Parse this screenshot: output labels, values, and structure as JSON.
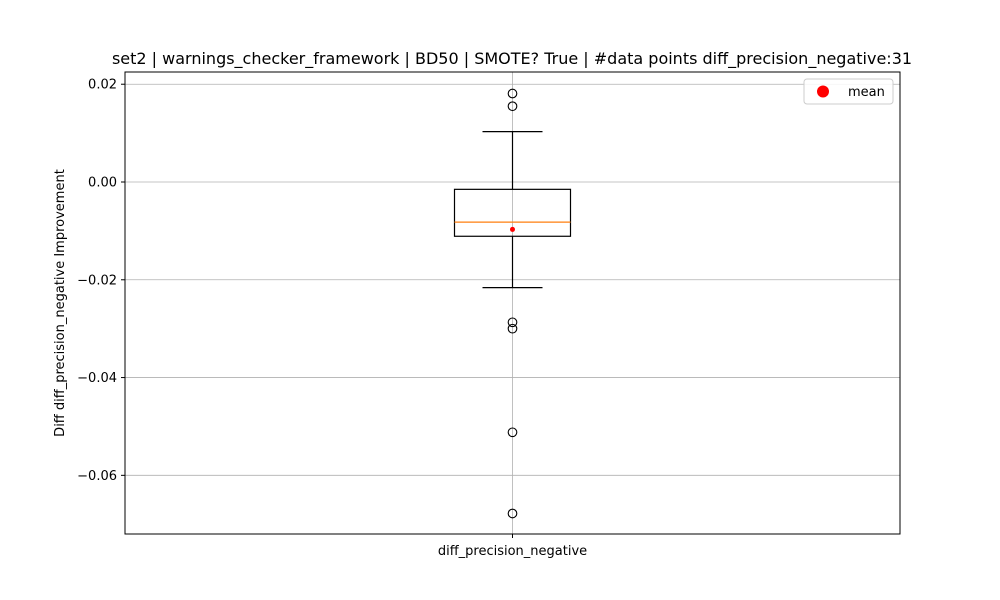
{
  "chart_data": {
    "type": "box",
    "title": "set2 | warnings_checker_framework | BD50 | SMOTE? True | #data points diff_precision_negative:31",
    "xlabel": "",
    "ylabel": "Diff diff_precision_negative Improvement",
    "categories": [
      "diff_precision_negative"
    ],
    "ylim": [
      -0.072,
      0.0225
    ],
    "yticks": [
      0.02,
      0.0,
      -0.02,
      -0.04,
      -0.06
    ],
    "ytick_labels": [
      "0.02",
      "0.00",
      "−0.02",
      "−0.04",
      "−0.06"
    ],
    "grid": true,
    "box": {
      "q1": -0.0111,
      "median": -0.0082,
      "q3": -0.0015,
      "whisker_low": -0.0216,
      "whisker_high": 0.0103,
      "mean": -0.0097,
      "outliers": [
        0.0181,
        0.0155,
        -0.0287,
        -0.03,
        -0.0512,
        -0.0678
      ]
    },
    "legend": {
      "position": "top-right",
      "entries": [
        {
          "label": "mean",
          "color": "#ff0000"
        }
      ]
    },
    "colors": {
      "median": "#ff7f0e",
      "mean": "#ff0000",
      "box": "#000000",
      "grid": "#b0b0b0"
    }
  }
}
